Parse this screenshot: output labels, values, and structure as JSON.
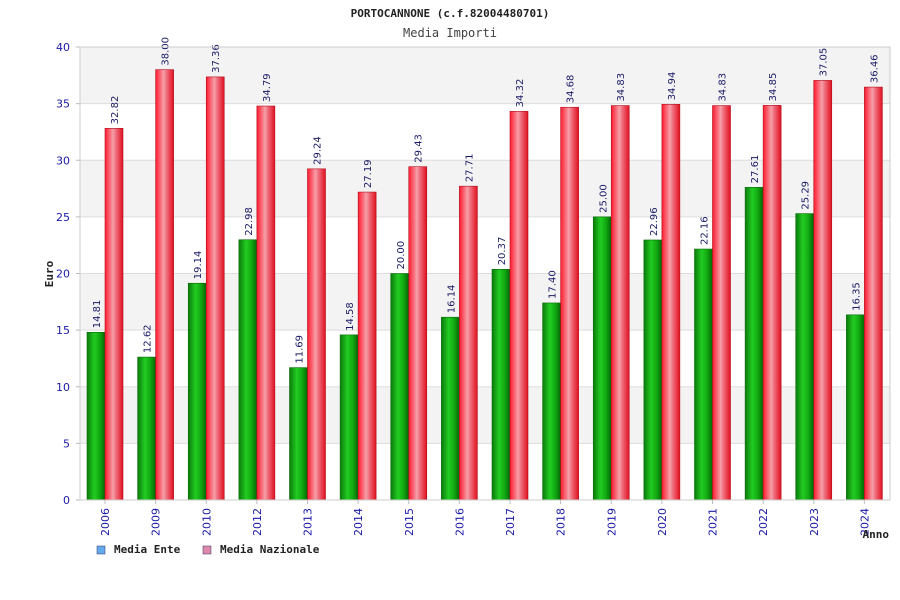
{
  "chart_data": {
    "type": "bar",
    "title": "PORTOCANNONE (c.f.82004480701)",
    "subtitle": "Media Importi",
    "xlabel": "Anno",
    "ylabel": "Euro",
    "ylim": [
      0,
      40
    ],
    "yticks": [
      "0",
      "5",
      "10",
      "15",
      "20",
      "25",
      "30",
      "35",
      "40"
    ],
    "categories": [
      "2006",
      "2009",
      "2010",
      "2012",
      "2013",
      "2014",
      "2015",
      "2016",
      "2017",
      "2018",
      "2019",
      "2020",
      "2021",
      "2022",
      "2023",
      "2024"
    ],
    "series": [
      {
        "name": "Media Ente",
        "values": [
          14.81,
          12.62,
          19.14,
          22.98,
          11.69,
          14.58,
          20.0,
          16.14,
          20.37,
          17.4,
          25.0,
          22.96,
          22.16,
          27.61,
          25.29,
          16.35
        ],
        "labels": [
          "14.81",
          "12.62",
          "19.14",
          "22.98",
          "11.69",
          "14.58",
          "20.00",
          "16.14",
          "20.37",
          "17.40",
          "25.00",
          "22.96",
          "22.16",
          "27.61",
          "25.29",
          "16.35"
        ]
      },
      {
        "name": "Media Nazionale",
        "values": [
          32.82,
          38.0,
          37.36,
          34.79,
          29.24,
          27.19,
          29.43,
          27.71,
          34.32,
          34.68,
          34.83,
          34.94,
          34.83,
          34.85,
          37.05,
          36.46
        ],
        "labels": [
          "32.82",
          "38.00",
          "37.36",
          "34.79",
          "29.24",
          "27.19",
          "29.43",
          "27.71",
          "34.32",
          "34.68",
          "34.83",
          "34.94",
          "34.83",
          "34.85",
          "37.05",
          "36.46"
        ]
      }
    ],
    "legend": {
      "position": "bottom-left"
    },
    "colors": {
      "ente": "#11aa11",
      "ente_dark": "#0a6a0a",
      "nazionale": "#ee1c2e",
      "nazionale_dark": "#b0101c",
      "legend_ente": "#66aaee",
      "legend_nazionale": "#dd88aa",
      "band": "#f3f3f3",
      "grid": "#dddddd",
      "axis": "#bbbbbb"
    }
  }
}
